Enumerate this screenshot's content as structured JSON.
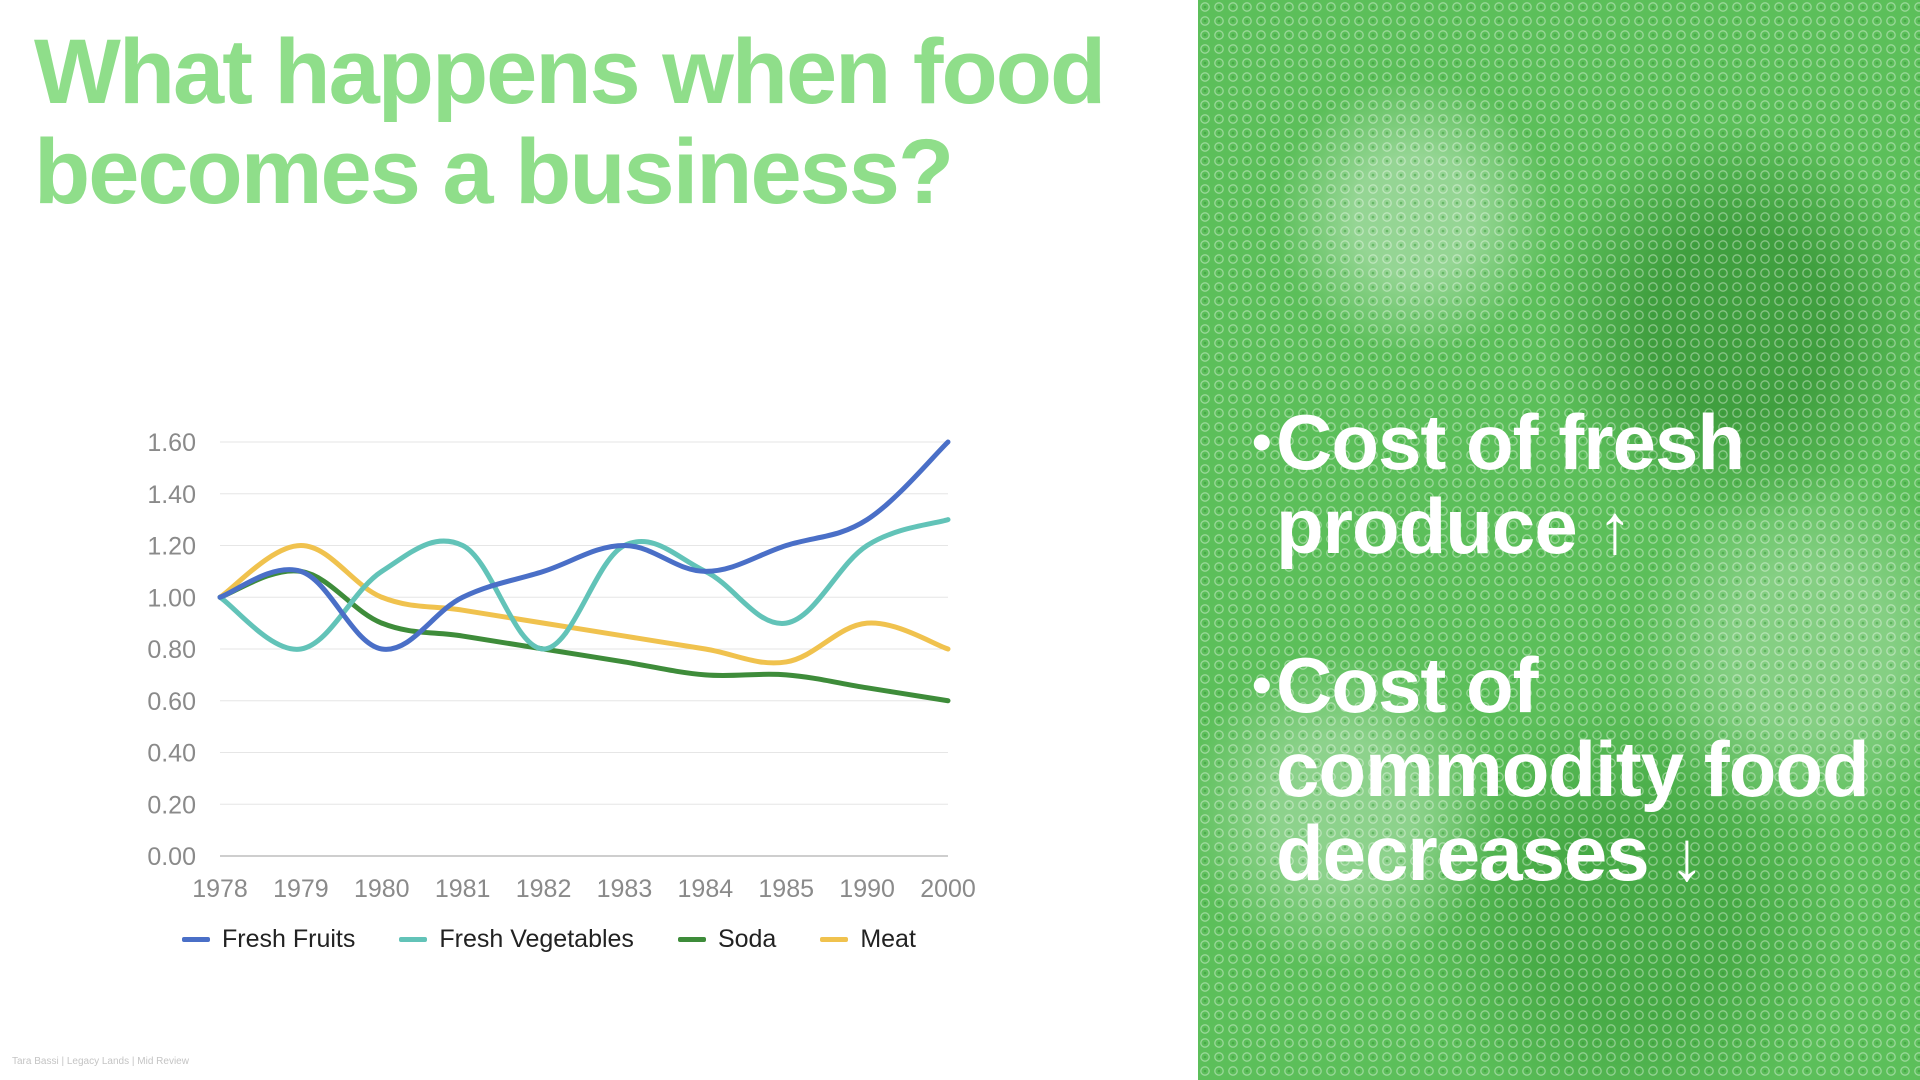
{
  "slide": {
    "title_line1": "What happens when food",
    "title_line2": "becomes a business?",
    "footer": "Tara Bassi | Legacy Lands | Mid Review",
    "title_color": "#8fde8a",
    "panel_color": "#5cbf5a"
  },
  "bullets": [
    {
      "text": "Cost of fresh produce",
      "arrow_icon": "arrow-up-icon",
      "arrow": "↑"
    },
    {
      "text": "Cost of commodity food decreases",
      "arrow_icon": "arrow-down-icon",
      "arrow": "↓"
    }
  ],
  "chart_data": {
    "type": "line",
    "title": "",
    "xlabel": "",
    "ylabel": "",
    "categories": [
      "1978",
      "1979",
      "1980",
      "1981",
      "1982",
      "1983",
      "1984",
      "1985",
      "1990",
      "2000"
    ],
    "ylim": [
      0,
      1.6
    ],
    "yticks": [
      "0.00",
      "0.20",
      "0.40",
      "0.60",
      "0.80",
      "1.00",
      "1.20",
      "1.40",
      "1.60"
    ],
    "grid": true,
    "smooth": true,
    "legend_position": "bottom",
    "series": [
      {
        "name": "Fresh Fruits",
        "color": "#4a6fc7",
        "values": [
          1.0,
          1.1,
          0.8,
          1.0,
          1.1,
          1.2,
          1.1,
          1.2,
          1.3,
          1.6
        ]
      },
      {
        "name": "Fresh Vegetables",
        "color": "#62c3b8",
        "values": [
          1.0,
          0.8,
          1.1,
          1.2,
          0.8,
          1.2,
          1.1,
          0.9,
          1.2,
          1.3
        ]
      },
      {
        "name": "Soda",
        "color": "#3e8c3a",
        "values": [
          1.0,
          1.1,
          0.9,
          0.85,
          0.8,
          0.75,
          0.7,
          0.7,
          0.65,
          0.6
        ]
      },
      {
        "name": "Meat",
        "color": "#f0c24e",
        "values": [
          1.0,
          1.2,
          1.0,
          0.95,
          0.9,
          0.85,
          0.8,
          0.75,
          0.9,
          0.8
        ]
      }
    ]
  }
}
